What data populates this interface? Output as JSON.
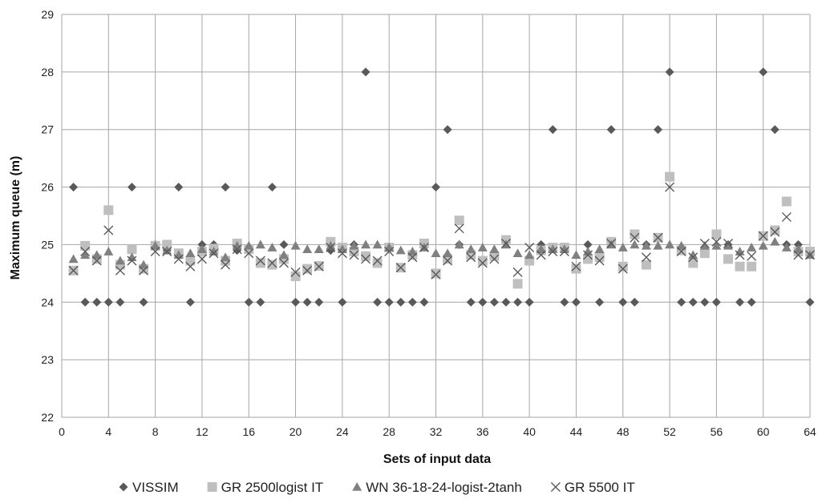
{
  "chart_data": {
    "type": "scatter",
    "xlabel": "Sets of input data",
    "ylabel": "Maximum queue (m)",
    "xlim": [
      0,
      64
    ],
    "ylim": [
      22,
      29
    ],
    "x_ticks": [
      0,
      4,
      8,
      12,
      16,
      20,
      24,
      28,
      32,
      36,
      40,
      44,
      48,
      52,
      56,
      60,
      64
    ],
    "y_ticks": [
      22,
      23,
      24,
      25,
      26,
      27,
      28,
      29
    ],
    "grid": true,
    "legend_position": "bottom",
    "series": [
      {
        "name": "VISSIM",
        "marker": "diamond",
        "color": "#595959",
        "points": [
          [
            1,
            26
          ],
          [
            2,
            24
          ],
          [
            3,
            24
          ],
          [
            4,
            24
          ],
          [
            5,
            24
          ],
          [
            6,
            26
          ],
          [
            7,
            24
          ],
          [
            8,
            25
          ],
          [
            9,
            24.9
          ],
          [
            10,
            26
          ],
          [
            11,
            24
          ],
          [
            12,
            25
          ],
          [
            13,
            25
          ],
          [
            14,
            26
          ],
          [
            15,
            24.9
          ],
          [
            16,
            24
          ],
          [
            17,
            24
          ],
          [
            18,
            26
          ],
          [
            19,
            25
          ],
          [
            20,
            24
          ],
          [
            21,
            24
          ],
          [
            22,
            24
          ],
          [
            23,
            24.9
          ],
          [
            24,
            24
          ],
          [
            25,
            25
          ],
          [
            26,
            28
          ],
          [
            27,
            24
          ],
          [
            28,
            24
          ],
          [
            29,
            24
          ],
          [
            30,
            24
          ],
          [
            31,
            24
          ],
          [
            32,
            26
          ],
          [
            33,
            27
          ],
          [
            34,
            25
          ],
          [
            35,
            24
          ],
          [
            36,
            24
          ],
          [
            37,
            24
          ],
          [
            38,
            24
          ],
          [
            39,
            24
          ],
          [
            40,
            24
          ],
          [
            41,
            25
          ],
          [
            42,
            27
          ],
          [
            43,
            24
          ],
          [
            44,
            24
          ],
          [
            45,
            25
          ],
          [
            46,
            24
          ],
          [
            47,
            27
          ],
          [
            48,
            24
          ],
          [
            49,
            24
          ],
          [
            50,
            25
          ],
          [
            51,
            27
          ],
          [
            52,
            28
          ],
          [
            53,
            24
          ],
          [
            54,
            24
          ],
          [
            55,
            24
          ],
          [
            56,
            24
          ],
          [
            57,
            25
          ],
          [
            58,
            24
          ],
          [
            59,
            24
          ],
          [
            60,
            28
          ],
          [
            61,
            27
          ],
          [
            62,
            25
          ],
          [
            63,
            25
          ],
          [
            64,
            24
          ]
        ]
      },
      {
        "name": "GR 2500logist IT",
        "marker": "square",
        "color": "#bfbfbf",
        "points": [
          [
            1,
            24.55
          ],
          [
            2,
            24.98
          ],
          [
            3,
            24.75
          ],
          [
            4,
            25.6
          ],
          [
            5,
            24.65
          ],
          [
            6,
            24.92
          ],
          [
            7,
            24.58
          ],
          [
            8,
            24.98
          ],
          [
            9,
            25
          ],
          [
            10,
            24.85
          ],
          [
            11,
            24.72
          ],
          [
            12,
            24.88
          ],
          [
            13,
            24.93
          ],
          [
            14,
            24.72
          ],
          [
            15,
            25.02
          ],
          [
            16,
            24.92
          ],
          [
            17,
            24.68
          ],
          [
            18,
            24.65
          ],
          [
            19,
            24.75
          ],
          [
            20,
            24.45
          ],
          [
            21,
            24.58
          ],
          [
            22,
            24.63
          ],
          [
            23,
            25.05
          ],
          [
            24,
            24.95
          ],
          [
            25,
            24.88
          ],
          [
            26,
            24.8
          ],
          [
            27,
            24.68
          ],
          [
            28,
            24.95
          ],
          [
            29,
            24.6
          ],
          [
            30,
            24.82
          ],
          [
            31,
            25.02
          ],
          [
            32,
            24.5
          ],
          [
            33,
            24.75
          ],
          [
            34,
            25.42
          ],
          [
            35,
            24.82
          ],
          [
            36,
            24.72
          ],
          [
            37,
            24.8
          ],
          [
            38,
            25.08
          ],
          [
            39,
            24.32
          ],
          [
            40,
            24.72
          ],
          [
            41,
            24.9
          ],
          [
            42,
            24.95
          ],
          [
            43,
            24.95
          ],
          [
            44,
            24.58
          ],
          [
            45,
            24.75
          ],
          [
            46,
            24.78
          ],
          [
            47,
            25.05
          ],
          [
            48,
            24.62
          ],
          [
            49,
            25.18
          ],
          [
            50,
            24.65
          ],
          [
            51,
            25.12
          ],
          [
            52,
            26.18
          ],
          [
            53,
            24.9
          ],
          [
            54,
            24.68
          ],
          [
            55,
            24.85
          ],
          [
            56,
            25.18
          ],
          [
            57,
            24.75
          ],
          [
            58,
            24.62
          ],
          [
            59,
            24.62
          ],
          [
            60,
            25.15
          ],
          [
            61,
            25.25
          ],
          [
            62,
            25.75
          ],
          [
            63,
            24.88
          ],
          [
            64,
            24.88
          ]
        ]
      },
      {
        "name": "WN 36-18-24-logist-2tanh",
        "marker": "triangle",
        "color": "#808080",
        "points": [
          [
            1,
            24.75
          ],
          [
            2,
            24.82
          ],
          [
            3,
            24.82
          ],
          [
            4,
            24.88
          ],
          [
            5,
            24.72
          ],
          [
            6,
            24.78
          ],
          [
            7,
            24.65
          ],
          [
            8,
            24.98
          ],
          [
            9,
            24.9
          ],
          [
            10,
            24.82
          ],
          [
            11,
            24.85
          ],
          [
            12,
            24.92
          ],
          [
            13,
            24.88
          ],
          [
            14,
            24.78
          ],
          [
            15,
            24.98
          ],
          [
            16,
            24.98
          ],
          [
            17,
            25
          ],
          [
            18,
            24.95
          ],
          [
            19,
            24.82
          ],
          [
            20,
            24.98
          ],
          [
            21,
            24.92
          ],
          [
            22,
            24.92
          ],
          [
            23,
            24.98
          ],
          [
            24,
            24.92
          ],
          [
            25,
            24.98
          ],
          [
            26,
            25
          ],
          [
            27,
            25
          ],
          [
            28,
            24.95
          ],
          [
            29,
            24.9
          ],
          [
            30,
            24.88
          ],
          [
            31,
            24.95
          ],
          [
            32,
            24.85
          ],
          [
            33,
            24.85
          ],
          [
            34,
            25
          ],
          [
            35,
            24.92
          ],
          [
            36,
            24.95
          ],
          [
            37,
            24.92
          ],
          [
            38,
            25
          ],
          [
            39,
            24.85
          ],
          [
            40,
            24.82
          ],
          [
            41,
            24.92
          ],
          [
            42,
            24.92
          ],
          [
            43,
            24.92
          ],
          [
            44,
            24.82
          ],
          [
            45,
            24.88
          ],
          [
            46,
            24.92
          ],
          [
            47,
            25
          ],
          [
            48,
            24.95
          ],
          [
            49,
            25
          ],
          [
            50,
            24.98
          ],
          [
            51,
            24.98
          ],
          [
            52,
            25
          ],
          [
            53,
            24.98
          ],
          [
            54,
            24.82
          ],
          [
            55,
            24.98
          ],
          [
            56,
            24.98
          ],
          [
            57,
            24.98
          ],
          [
            58,
            24.88
          ],
          [
            59,
            24.95
          ],
          [
            60,
            24.98
          ],
          [
            61,
            25.05
          ],
          [
            62,
            24.95
          ],
          [
            63,
            24.92
          ],
          [
            64,
            24.82
          ]
        ]
      },
      {
        "name": "GR 5500 IT",
        "marker": "cross",
        "color": "#595959",
        "points": [
          [
            1,
            24.55
          ],
          [
            2,
            24.88
          ],
          [
            3,
            24.72
          ],
          [
            4,
            25.25
          ],
          [
            5,
            24.55
          ],
          [
            6,
            24.72
          ],
          [
            7,
            24.55
          ],
          [
            8,
            24.88
          ],
          [
            9,
            24.88
          ],
          [
            10,
            24.75
          ],
          [
            11,
            24.62
          ],
          [
            12,
            24.75
          ],
          [
            13,
            24.85
          ],
          [
            14,
            24.65
          ],
          [
            15,
            24.92
          ],
          [
            16,
            24.85
          ],
          [
            17,
            24.72
          ],
          [
            18,
            24.68
          ],
          [
            19,
            24.68
          ],
          [
            20,
            24.52
          ],
          [
            21,
            24.55
          ],
          [
            22,
            24.62
          ],
          [
            23,
            24.95
          ],
          [
            24,
            24.85
          ],
          [
            25,
            24.82
          ],
          [
            26,
            24.75
          ],
          [
            27,
            24.72
          ],
          [
            28,
            24.88
          ],
          [
            29,
            24.6
          ],
          [
            30,
            24.78
          ],
          [
            31,
            24.95
          ],
          [
            32,
            24.48
          ],
          [
            33,
            24.72
          ],
          [
            34,
            25.28
          ],
          [
            35,
            24.78
          ],
          [
            36,
            24.68
          ],
          [
            37,
            24.75
          ],
          [
            38,
            25.02
          ],
          [
            39,
            24.52
          ],
          [
            40,
            24.95
          ],
          [
            41,
            24.82
          ],
          [
            42,
            24.88
          ],
          [
            43,
            24.88
          ],
          [
            44,
            24.62
          ],
          [
            45,
            24.82
          ],
          [
            46,
            24.72
          ],
          [
            47,
            25.02
          ],
          [
            48,
            24.58
          ],
          [
            49,
            25.12
          ],
          [
            50,
            24.78
          ],
          [
            51,
            25.12
          ],
          [
            52,
            26
          ],
          [
            53,
            24.88
          ],
          [
            54,
            24.78
          ],
          [
            55,
            25.02
          ],
          [
            56,
            25.05
          ],
          [
            57,
            25.02
          ],
          [
            58,
            24.82
          ],
          [
            59,
            24.8
          ],
          [
            60,
            25.15
          ],
          [
            61,
            25.22
          ],
          [
            62,
            25.48
          ],
          [
            63,
            24.82
          ],
          [
            64,
            24.82
          ]
        ]
      }
    ]
  }
}
